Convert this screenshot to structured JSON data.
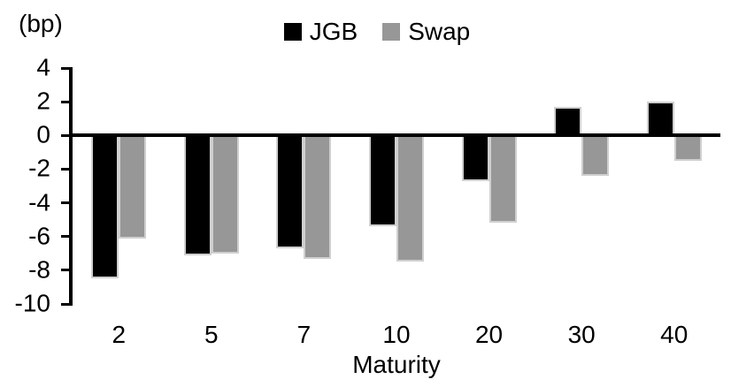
{
  "chart_data": {
    "type": "bar",
    "title": "",
    "unit_label": "(bp)",
    "xlabel": "Maturity",
    "categories": [
      "2",
      "5",
      "7",
      "10",
      "20",
      "30",
      "40"
    ],
    "series": [
      {
        "name": "JGB",
        "color": "#000000",
        "values": [
          -8.5,
          -7.1,
          -6.7,
          -5.4,
          -2.7,
          1.7,
          2.0
        ]
      },
      {
        "name": "Swap",
        "color": "#979797",
        "values": [
          -6.1,
          -7.0,
          -7.3,
          -7.5,
          -5.2,
          -2.4,
          -1.5
        ]
      }
    ],
    "y_ticks": [
      4,
      2,
      0,
      -2,
      -4,
      -6,
      -8,
      -10
    ],
    "ylim": [
      -10,
      4
    ],
    "legend_position": "top",
    "grid": false,
    "bar_border_color": "#cfcfcf"
  }
}
